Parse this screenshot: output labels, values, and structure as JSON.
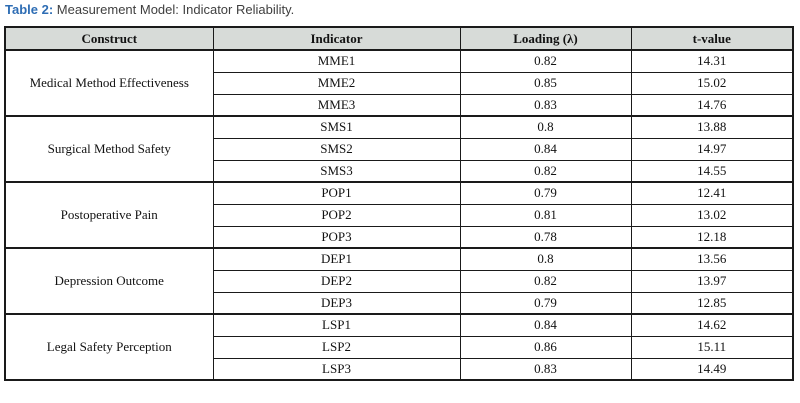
{
  "caption": {
    "label": "Table 2:",
    "text": " Measurement Model: Indicator Reliability."
  },
  "colors": {
    "caption_accent": "#2e6db4",
    "caption_text": "#3f3f3f",
    "header_bg": "#d7dbd8",
    "border": "#1a1a1a"
  },
  "table": {
    "headers": [
      "Construct",
      "Indicator",
      "Loading (λ)",
      "t-value"
    ],
    "groups": [
      {
        "construct": "Medical Method Effectiveness",
        "rows": [
          {
            "indicator": "MME1",
            "loading": "0.82",
            "tvalue": "14.31"
          },
          {
            "indicator": "MME2",
            "loading": "0.85",
            "tvalue": "15.02"
          },
          {
            "indicator": "MME3",
            "loading": "0.83",
            "tvalue": "14.76"
          }
        ]
      },
      {
        "construct": "Surgical Method Safety",
        "rows": [
          {
            "indicator": "SMS1",
            "loading": "0.8",
            "tvalue": "13.88"
          },
          {
            "indicator": "SMS2",
            "loading": "0.84",
            "tvalue": "14.97"
          },
          {
            "indicator": "SMS3",
            "loading": "0.82",
            "tvalue": "14.55"
          }
        ]
      },
      {
        "construct": "Postoperative Pain",
        "rows": [
          {
            "indicator": "POP1",
            "loading": "0.79",
            "tvalue": "12.41"
          },
          {
            "indicator": "POP2",
            "loading": "0.81",
            "tvalue": "13.02"
          },
          {
            "indicator": "POP3",
            "loading": "0.78",
            "tvalue": "12.18"
          }
        ]
      },
      {
        "construct": "Depression Outcome",
        "rows": [
          {
            "indicator": "DEP1",
            "loading": "0.8",
            "tvalue": "13.56"
          },
          {
            "indicator": "DEP2",
            "loading": "0.82",
            "tvalue": "13.97"
          },
          {
            "indicator": "DEP3",
            "loading": "0.79",
            "tvalue": "12.85"
          }
        ]
      },
      {
        "construct": "Legal Safety Perception",
        "rows": [
          {
            "indicator": "LSP1",
            "loading": "0.84",
            "tvalue": "14.62"
          },
          {
            "indicator": "LSP2",
            "loading": "0.86",
            "tvalue": "15.11"
          },
          {
            "indicator": "LSP3",
            "loading": "0.83",
            "tvalue": "14.49"
          }
        ]
      }
    ]
  }
}
